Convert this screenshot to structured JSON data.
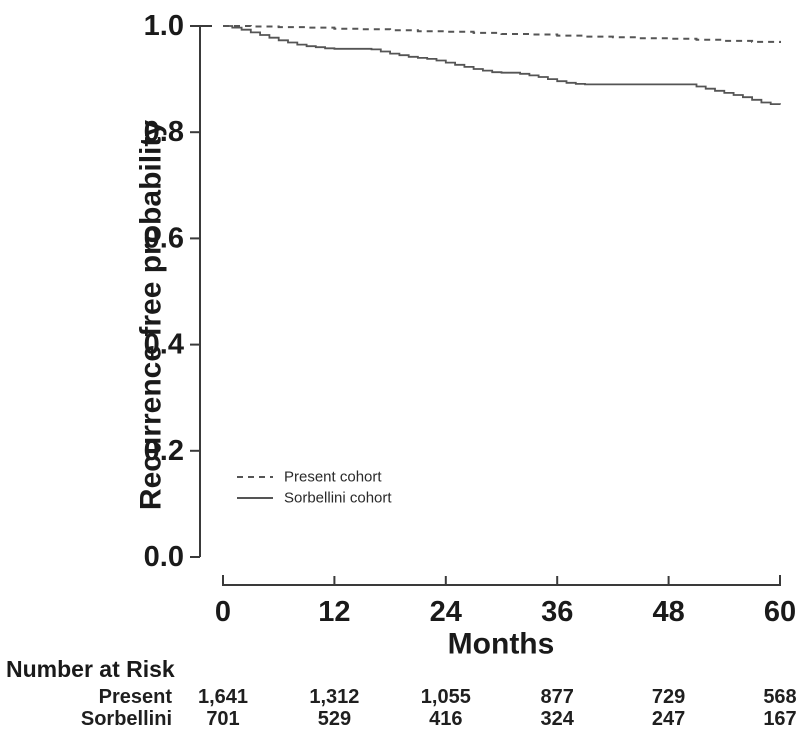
{
  "chart_data": {
    "type": "line",
    "subtype": "kaplan-meier-step",
    "title": "",
    "xlabel": "Months",
    "ylabel": "Recurrence free probability",
    "xlim": [
      0,
      60
    ],
    "ylim": [
      0.0,
      1.0
    ],
    "grid": false,
    "x_ticks": [
      0,
      12,
      24,
      36,
      48,
      60
    ],
    "x_tick_labels": [
      "0",
      "12",
      "24",
      "36",
      "48",
      "60"
    ],
    "y_ticks": [
      1.0,
      0.8,
      0.6,
      0.4,
      0.2,
      0.0
    ],
    "y_tick_labels": [
      "1.0",
      "0.8",
      "0.6",
      "0.4",
      "0.2",
      "0.0"
    ],
    "legend": {
      "position": "inside-lower-left",
      "entries": [
        "Present cohort",
        "Sorbellini cohort"
      ]
    },
    "colors": {
      "curve": "#555555",
      "axis": "#3a3a3a",
      "text": "#1a1a1a"
    },
    "series": [
      {
        "name": "Present cohort",
        "style": "dashed",
        "points": [
          [
            0,
            1.0
          ],
          [
            3,
            0.999
          ],
          [
            6,
            0.998
          ],
          [
            9,
            0.997
          ],
          [
            12,
            0.995
          ],
          [
            15,
            0.994
          ],
          [
            18,
            0.992
          ],
          [
            21,
            0.99
          ],
          [
            24,
            0.989
          ],
          [
            27,
            0.987
          ],
          [
            30,
            0.985
          ],
          [
            33,
            0.984
          ],
          [
            36,
            0.982
          ],
          [
            39,
            0.98
          ],
          [
            42,
            0.979
          ],
          [
            45,
            0.977
          ],
          [
            48,
            0.976
          ],
          [
            51,
            0.974
          ],
          [
            54,
            0.972
          ],
          [
            57,
            0.97
          ],
          [
            60,
            0.968
          ]
        ]
      },
      {
        "name": "Sorbellini cohort",
        "style": "solid",
        "points": [
          [
            0,
            1.0
          ],
          [
            1,
            0.997
          ],
          [
            2,
            0.993
          ],
          [
            3,
            0.988
          ],
          [
            4,
            0.983
          ],
          [
            5,
            0.978
          ],
          [
            6,
            0.973
          ],
          [
            7,
            0.969
          ],
          [
            8,
            0.965
          ],
          [
            9,
            0.962
          ],
          [
            10,
            0.96
          ],
          [
            11,
            0.958
          ],
          [
            12,
            0.957
          ],
          [
            16,
            0.956
          ],
          [
            17,
            0.952
          ],
          [
            18,
            0.948
          ],
          [
            19,
            0.945
          ],
          [
            20,
            0.942
          ],
          [
            21,
            0.94
          ],
          [
            22,
            0.938
          ],
          [
            23,
            0.935
          ],
          [
            24,
            0.931
          ],
          [
            25,
            0.927
          ],
          [
            26,
            0.923
          ],
          [
            27,
            0.919
          ],
          [
            28,
            0.916
          ],
          [
            29,
            0.913
          ],
          [
            30,
            0.912
          ],
          [
            32,
            0.91
          ],
          [
            33,
            0.907
          ],
          [
            34,
            0.904
          ],
          [
            35,
            0.9
          ],
          [
            36,
            0.896
          ],
          [
            37,
            0.893
          ],
          [
            38,
            0.891
          ],
          [
            39,
            0.89
          ],
          [
            50,
            0.89
          ],
          [
            51,
            0.886
          ],
          [
            52,
            0.882
          ],
          [
            53,
            0.878
          ],
          [
            54,
            0.874
          ],
          [
            55,
            0.87
          ],
          [
            56,
            0.866
          ],
          [
            57,
            0.861
          ],
          [
            58,
            0.856
          ],
          [
            59,
            0.853
          ],
          [
            60,
            0.852
          ]
        ]
      }
    ],
    "risk_table": {
      "title": "Number at Risk",
      "time_points": [
        0,
        12,
        24,
        36,
        48,
        60
      ],
      "rows": [
        {
          "label": "Present",
          "values": [
            "1,641",
            "1,312",
            "1,055",
            "877",
            "729",
            "568"
          ]
        },
        {
          "label": "Sorbellini",
          "values": [
            "701",
            "529",
            "416",
            "324",
            "247",
            "167"
          ]
        }
      ]
    }
  }
}
